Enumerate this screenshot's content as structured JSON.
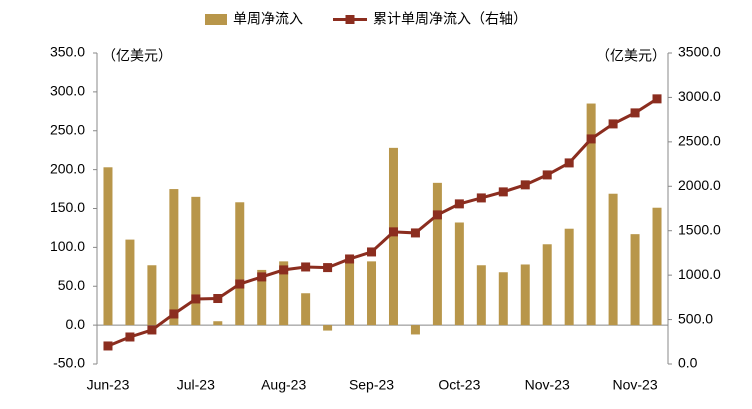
{
  "chart_data": {
    "type": "bar_line",
    "categories": [
      "Jun-23",
      null,
      null,
      null,
      "Jul-23",
      null,
      null,
      null,
      "Aug-23",
      null,
      null,
      null,
      "Sep-23",
      null,
      null,
      null,
      "Oct-23",
      null,
      null,
      null,
      "Nov-23",
      null,
      null,
      null,
      "Nov-23",
      null
    ],
    "series": [
      {
        "name": "单周净流入",
        "type": "bar",
        "color": "#b8964a",
        "values": [
          203,
          110,
          77,
          175,
          165,
          5,
          158,
          71,
          82,
          41,
          -7,
          83,
          82,
          228,
          -12,
          183,
          132,
          77,
          68,
          78,
          104,
          124,
          285,
          169,
          117,
          151
        ]
      },
      {
        "name": "累计单周净流入（右轴）",
        "type": "line",
        "axis": "y2",
        "color": "#8b2d1f",
        "values": [
          203,
          304,
          383,
          563,
          732,
          737,
          900,
          980,
          1059,
          1092,
          1085,
          1182,
          1261,
          1487,
          1475,
          1678,
          1802,
          1869,
          1937,
          2016,
          2128,
          2263,
          2533,
          2702,
          2826,
          2984
        ]
      }
    ],
    "y_label": "（亿美元）",
    "y2_label": "（亿美元）",
    "ylim": [
      -50,
      350
    ],
    "yticks": [
      {
        "value": -50,
        "label": "-50.0"
      },
      {
        "value": 0,
        "label": "0.0"
      },
      {
        "value": 50,
        "label": "50.0"
      },
      {
        "value": 100,
        "label": "100.0"
      },
      {
        "value": 150,
        "label": "150.0"
      },
      {
        "value": 200,
        "label": "200.0"
      },
      {
        "value": 250,
        "label": "250.0"
      },
      {
        "value": 300,
        "label": "300.0"
      },
      {
        "value": 350,
        "label": "350.0"
      }
    ],
    "y2lim": [
      0,
      3500
    ],
    "y2ticks": [
      {
        "value": 0,
        "label": "0.0"
      },
      {
        "value": 500,
        "label": "500.0"
      },
      {
        "value": 1000,
        "label": "1000.0"
      },
      {
        "value": 1500,
        "label": "1500.0"
      },
      {
        "value": 2000,
        "label": "2000.0"
      },
      {
        "value": 2500,
        "label": "2500.0"
      },
      {
        "value": 3000,
        "label": "3000.0"
      },
      {
        "value": 3500,
        "label": "3500.0"
      }
    ]
  }
}
